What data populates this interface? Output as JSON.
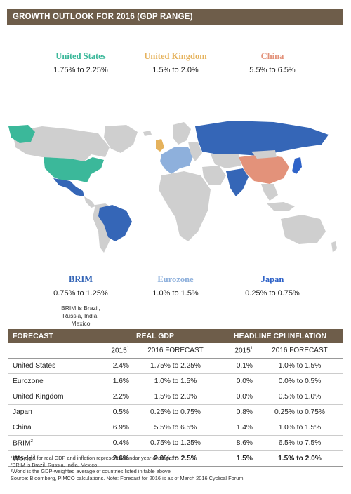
{
  "header": {
    "title": "GROWTH OUTLOOK FOR 2016 (GDP RANGE)"
  },
  "colors": {
    "header_bar": "#6e5d4a",
    "united_states": "#3bb89a",
    "united_kingdom": "#e5b25c",
    "china": "#e3927a",
    "brim": "#3566b7",
    "eurozone": "#8eb0dc",
    "japan": "#2f63c8",
    "other_land": "#cfcfcf"
  },
  "regions": {
    "us": {
      "name": "United States",
      "range": "1.75% to 2.25%"
    },
    "uk": {
      "name": "United Kingdom",
      "range": "1.5% to 2.0%"
    },
    "china": {
      "name": "China",
      "range": "5.5% to 6.5%"
    },
    "brim": {
      "name": "BRIM",
      "range": "0.75% to 1.25%",
      "note": "BRIM is Brazil, Russia, India, Mexico"
    },
    "eurozone": {
      "name": "Eurozone",
      "range": "1.0% to 1.5%"
    },
    "japan": {
      "name": "Japan",
      "range": "0.25% to 0.75%"
    }
  },
  "table": {
    "head": {
      "forecast": "FORECAST",
      "real_gdp": "REAL GDP",
      "cpi": "HEADLINE CPI INFLATION"
    },
    "sub": {
      "y2015": "2015",
      "y2016": "2016 FORECAST",
      "y2015b": "2015",
      "y2016b": "2016 FORECAST",
      "sup1": "1"
    },
    "rows": [
      {
        "name": "United States",
        "sup": "",
        "gdp2015": "2.4%",
        "gdp2016": "1.75% to 2.25%",
        "cpi2015": "0.1%",
        "cpi2016": "1.0% to 1.5%"
      },
      {
        "name": "Eurozone",
        "sup": "",
        "gdp2015": "1.6%",
        "gdp2016": "1.0% to 1.5%",
        "cpi2015": "0.0%",
        "cpi2016": "0.0% to 0.5%"
      },
      {
        "name": "United Kingdom",
        "sup": "",
        "gdp2015": "2.2%",
        "gdp2016": "1.5% to 2.0%",
        "cpi2015": "0.0%",
        "cpi2016": "0.5% to 1.0%"
      },
      {
        "name": "Japan",
        "sup": "",
        "gdp2015": "0.5%",
        "gdp2016": "0.25% to 0.75%",
        "cpi2015": "0.8%",
        "cpi2016": "0.25% to 0.75%"
      },
      {
        "name": "China",
        "sup": "",
        "gdp2015": "6.9%",
        "gdp2016": "5.5% to 6.5%",
        "cpi2015": "1.4%",
        "cpi2016": "1.0% to 1.5%"
      },
      {
        "name": "BRIM",
        "sup": "2",
        "gdp2015": "0.4%",
        "gdp2016": "0.75% to 1.25%",
        "cpi2015": "8.6%",
        "cpi2016": "6.5% to 7.5%"
      },
      {
        "name": "World",
        "sup": "3",
        "gdp2015": "2.6%",
        "gdp2016": "2.0% to 2.5%",
        "cpi2015": "1.5%",
        "cpi2016": "1.5% to 2.0%"
      }
    ]
  },
  "footnotes": {
    "f1": "¹2015 data for real GDP and inflation represent calendar year averages",
    "f2": "²BRIM is Brazil, Russia, India, Mexico",
    "f3": "³World is the GDP-weighted average of countries listed in table above",
    "source": "Source: Bloomberg, PIMCO calculations. Note: Forecast for 2016 is as of March 2016 Cyclical Forum."
  }
}
